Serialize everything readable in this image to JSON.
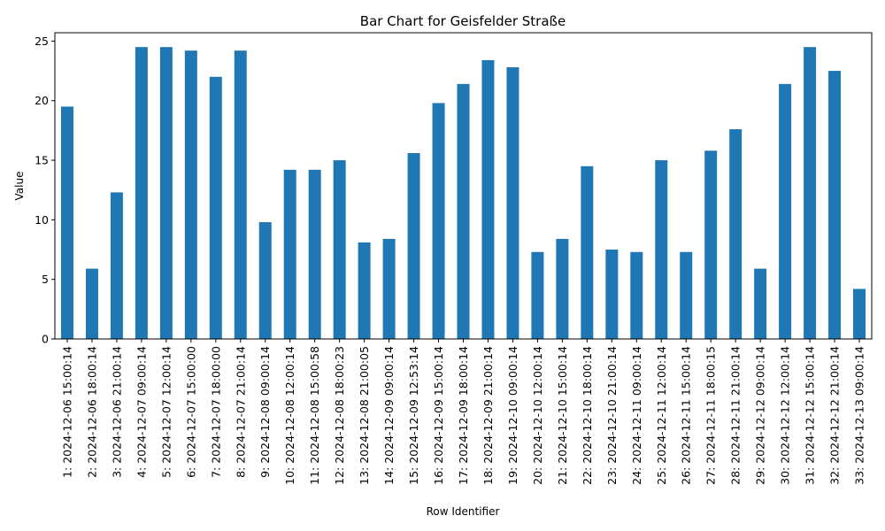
{
  "chart_data": {
    "type": "bar",
    "title": "Bar Chart for Geisfelder Straße",
    "xlabel": "Row Identifier",
    "ylabel": "Value",
    "ylim": [
      0,
      25.7
    ],
    "yticks": [
      0,
      5,
      10,
      15,
      20,
      25
    ],
    "grid": false,
    "legend": "none",
    "color": "#1f77b4",
    "categories": [
      "1: 2024-12-06 15:00:14",
      "2: 2024-12-06 18:00:14",
      "3: 2024-12-06 21:00:14",
      "4: 2024-12-07 09:00:14",
      "5: 2024-12-07 12:00:14",
      "6: 2024-12-07 15:00:00",
      "7: 2024-12-07 18:00:00",
      "8: 2024-12-07 21:00:14",
      "9: 2024-12-08 09:00:14",
      "10: 2024-12-08 12:00:14",
      "11: 2024-12-08 15:00:58",
      "12: 2024-12-08 18:00:23",
      "13: 2024-12-08 21:00:05",
      "14: 2024-12-09 09:00:14",
      "15: 2024-12-09 12:53:14",
      "16: 2024-12-09 15:00:14",
      "17: 2024-12-09 18:00:14",
      "18: 2024-12-09 21:00:14",
      "19: 2024-12-10 09:00:14",
      "20: 2024-12-10 12:00:14",
      "21: 2024-12-10 15:00:14",
      "22: 2024-12-10 18:00:14",
      "23: 2024-12-10 21:00:14",
      "24: 2024-12-11 09:00:14",
      "25: 2024-12-11 12:00:14",
      "26: 2024-12-11 15:00:14",
      "27: 2024-12-11 18:00:15",
      "28: 2024-12-11 21:00:14",
      "29: 2024-12-12 09:00:14",
      "30: 2024-12-12 12:00:14",
      "31: 2024-12-12 15:00:14",
      "32: 2024-12-12 21:00:14",
      "33: 2024-12-13 09:00:14"
    ],
    "values": [
      19.5,
      5.9,
      12.3,
      24.5,
      24.5,
      24.2,
      22.0,
      24.2,
      9.8,
      14.2,
      14.2,
      15.0,
      8.1,
      8.4,
      15.6,
      19.8,
      21.4,
      23.4,
      22.8,
      7.3,
      8.4,
      14.5,
      7.5,
      7.3,
      15.0,
      7.3,
      15.8,
      17.6,
      5.9,
      21.4,
      24.5,
      22.5,
      4.2
    ]
  }
}
